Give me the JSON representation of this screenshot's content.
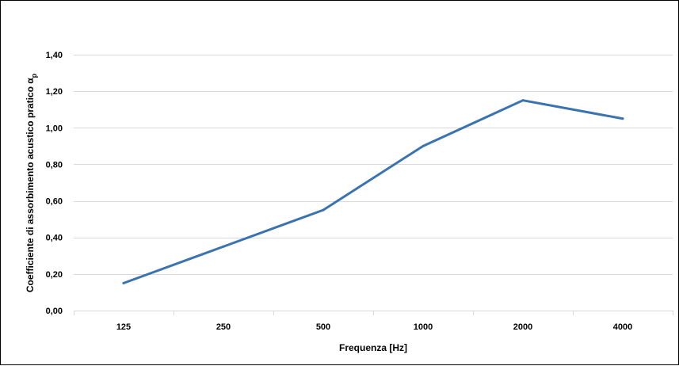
{
  "chart_data": {
    "type": "line",
    "title": "",
    "xlabel": "Frequenza [Hz]",
    "ylabel": "Coefficiente di assorbimento acustico pratico α",
    "ylabel_subscript": "p",
    "categories": [
      "125",
      "250",
      "500",
      "1000",
      "2000",
      "4000"
    ],
    "series": [
      {
        "values": [
          0.15,
          0.35,
          0.55,
          0.9,
          1.15,
          1.05
        ],
        "color": "#3B73B0"
      }
    ],
    "ylim": [
      0,
      1.4
    ],
    "y_ticks": [
      0,
      0.2,
      0.4,
      0.6,
      0.8,
      1.0,
      1.2,
      1.4
    ],
    "y_tick_labels": [
      "0,00",
      "0,20",
      "0,40",
      "0,60",
      "0,80",
      "1,00",
      "1,20",
      "1,40"
    ],
    "grid": true,
    "gridline_color": "#D9D9D9",
    "legend": "none"
  }
}
